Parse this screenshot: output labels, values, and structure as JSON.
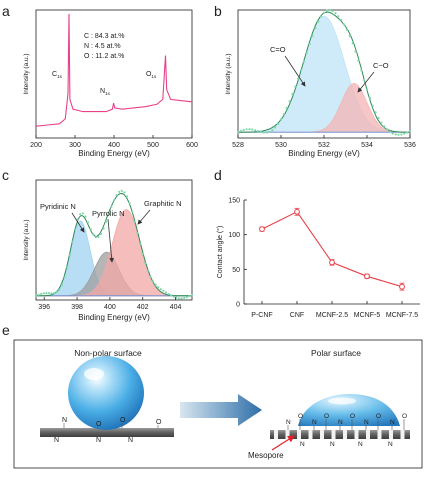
{
  "panel_labels": {
    "a": "a",
    "b": "b",
    "c": "c",
    "d": "d",
    "e": "e"
  },
  "colors": {
    "a_line": "#e8408a",
    "fit_line": "#2e8b57",
    "points": "#7fd6a8",
    "c_eq_o": "#bfe4f7",
    "c_o": "#f4b4b4",
    "pyridinic": "#9fd3f2",
    "pyrrolic": "#9e9e9e",
    "graphitic": "#f3a7a7",
    "d_line": "#e8404a"
  },
  "chart_data": [
    {
      "type": "line",
      "title": "",
      "xlabel": "Binding Energy (eV)",
      "ylabel": "Intensity (a.u.)",
      "xlim": [
        200,
        600
      ],
      "xticks": [
        "200",
        "300",
        "400",
        "500",
        "600"
      ],
      "series": [
        {
          "x": [
            200,
            230,
            260,
            275,
            282,
            284.5,
            287,
            295,
            320,
            350,
            380,
            396,
            399,
            402,
            420,
            450,
            480,
            510,
            525,
            529,
            532,
            535,
            545,
            570,
            600
          ],
          "y": [
            0.08,
            0.09,
            0.1,
            0.14,
            0.35,
            1.0,
            0.3,
            0.22,
            0.2,
            0.2,
            0.2,
            0.22,
            0.27,
            0.23,
            0.22,
            0.23,
            0.24,
            0.26,
            0.3,
            0.5,
            0.66,
            0.38,
            0.3,
            0.29,
            0.28
          ]
        }
      ],
      "annotations": {
        "composition": [
          "C : 84.3 at.%",
          "N : 4.5 at.%",
          "O : 11.2 at.%"
        ],
        "peaks": {
          "c1s": "C",
          "c1s_sub": "1s",
          "n1s": "N",
          "n1s_sub": "1s",
          "o1s": "O",
          "o1s_sub": "1s"
        }
      }
    },
    {
      "type": "area",
      "title": "",
      "xlabel": "Binding Energy (eV)",
      "ylabel": "Intensity (a.u.)",
      "xlim": [
        528,
        536
      ],
      "xticks": [
        "528",
        "530",
        "532",
        "534",
        "536"
      ],
      "components": [
        {
          "name": "C=O",
          "center": 532.0,
          "sigma": 0.95,
          "height": 1.0
        },
        {
          "name": "C−O",
          "center": 533.4,
          "sigma": 0.6,
          "height": 0.42
        }
      ],
      "baseline": 0.05,
      "labels": {
        "c_eq_o": "C=O",
        "c_o": "C−O"
      }
    },
    {
      "type": "area",
      "title": "",
      "xlabel": "Binding Energy (eV)",
      "ylabel": "Intensity (a.u.)",
      "xlim": [
        395.5,
        405
      ],
      "xticks": [
        "396",
        "398",
        "400",
        "402",
        "404"
      ],
      "components": [
        {
          "name": "Pyridinic N",
          "center": 398.2,
          "sigma": 0.6,
          "height": 0.72
        },
        {
          "name": "Pyrrolic N",
          "center": 399.8,
          "sigma": 0.75,
          "height": 0.42
        },
        {
          "name": "Graphitic N",
          "center": 401.0,
          "sigma": 0.85,
          "height": 0.83
        }
      ],
      "baseline": 0.04,
      "labels": {
        "pyridinic": "Pyridinic N",
        "pyrrolic": "Pyrrolic N",
        "graphitic": "Graphitic N"
      }
    },
    {
      "type": "line",
      "title": "",
      "xlabel": "",
      "ylabel": "Contact angle (°)",
      "ylim": [
        0,
        150
      ],
      "yticks": [
        "0",
        "50",
        "100",
        "150"
      ],
      "categories": [
        "P-CNF",
        "CNF",
        "MCNF-2.5",
        "MCNF-5",
        "MCNF-7.5"
      ],
      "values": [
        108,
        133,
        60,
        40,
        25
      ],
      "errors": [
        3,
        5,
        4,
        3,
        5
      ]
    }
  ],
  "schematic": {
    "left_label": "Non-polar surface",
    "right_label": "Polar surface",
    "mesopore_label": "Mesopore",
    "left_atoms": [
      "N",
      "N",
      "O",
      "N",
      "N",
      "O",
      "O"
    ],
    "right_atoms": [
      "N",
      "O",
      "N",
      "O",
      "N",
      "O",
      "N",
      "O",
      "N",
      "O",
      "N",
      "N",
      "N",
      "N"
    ]
  }
}
